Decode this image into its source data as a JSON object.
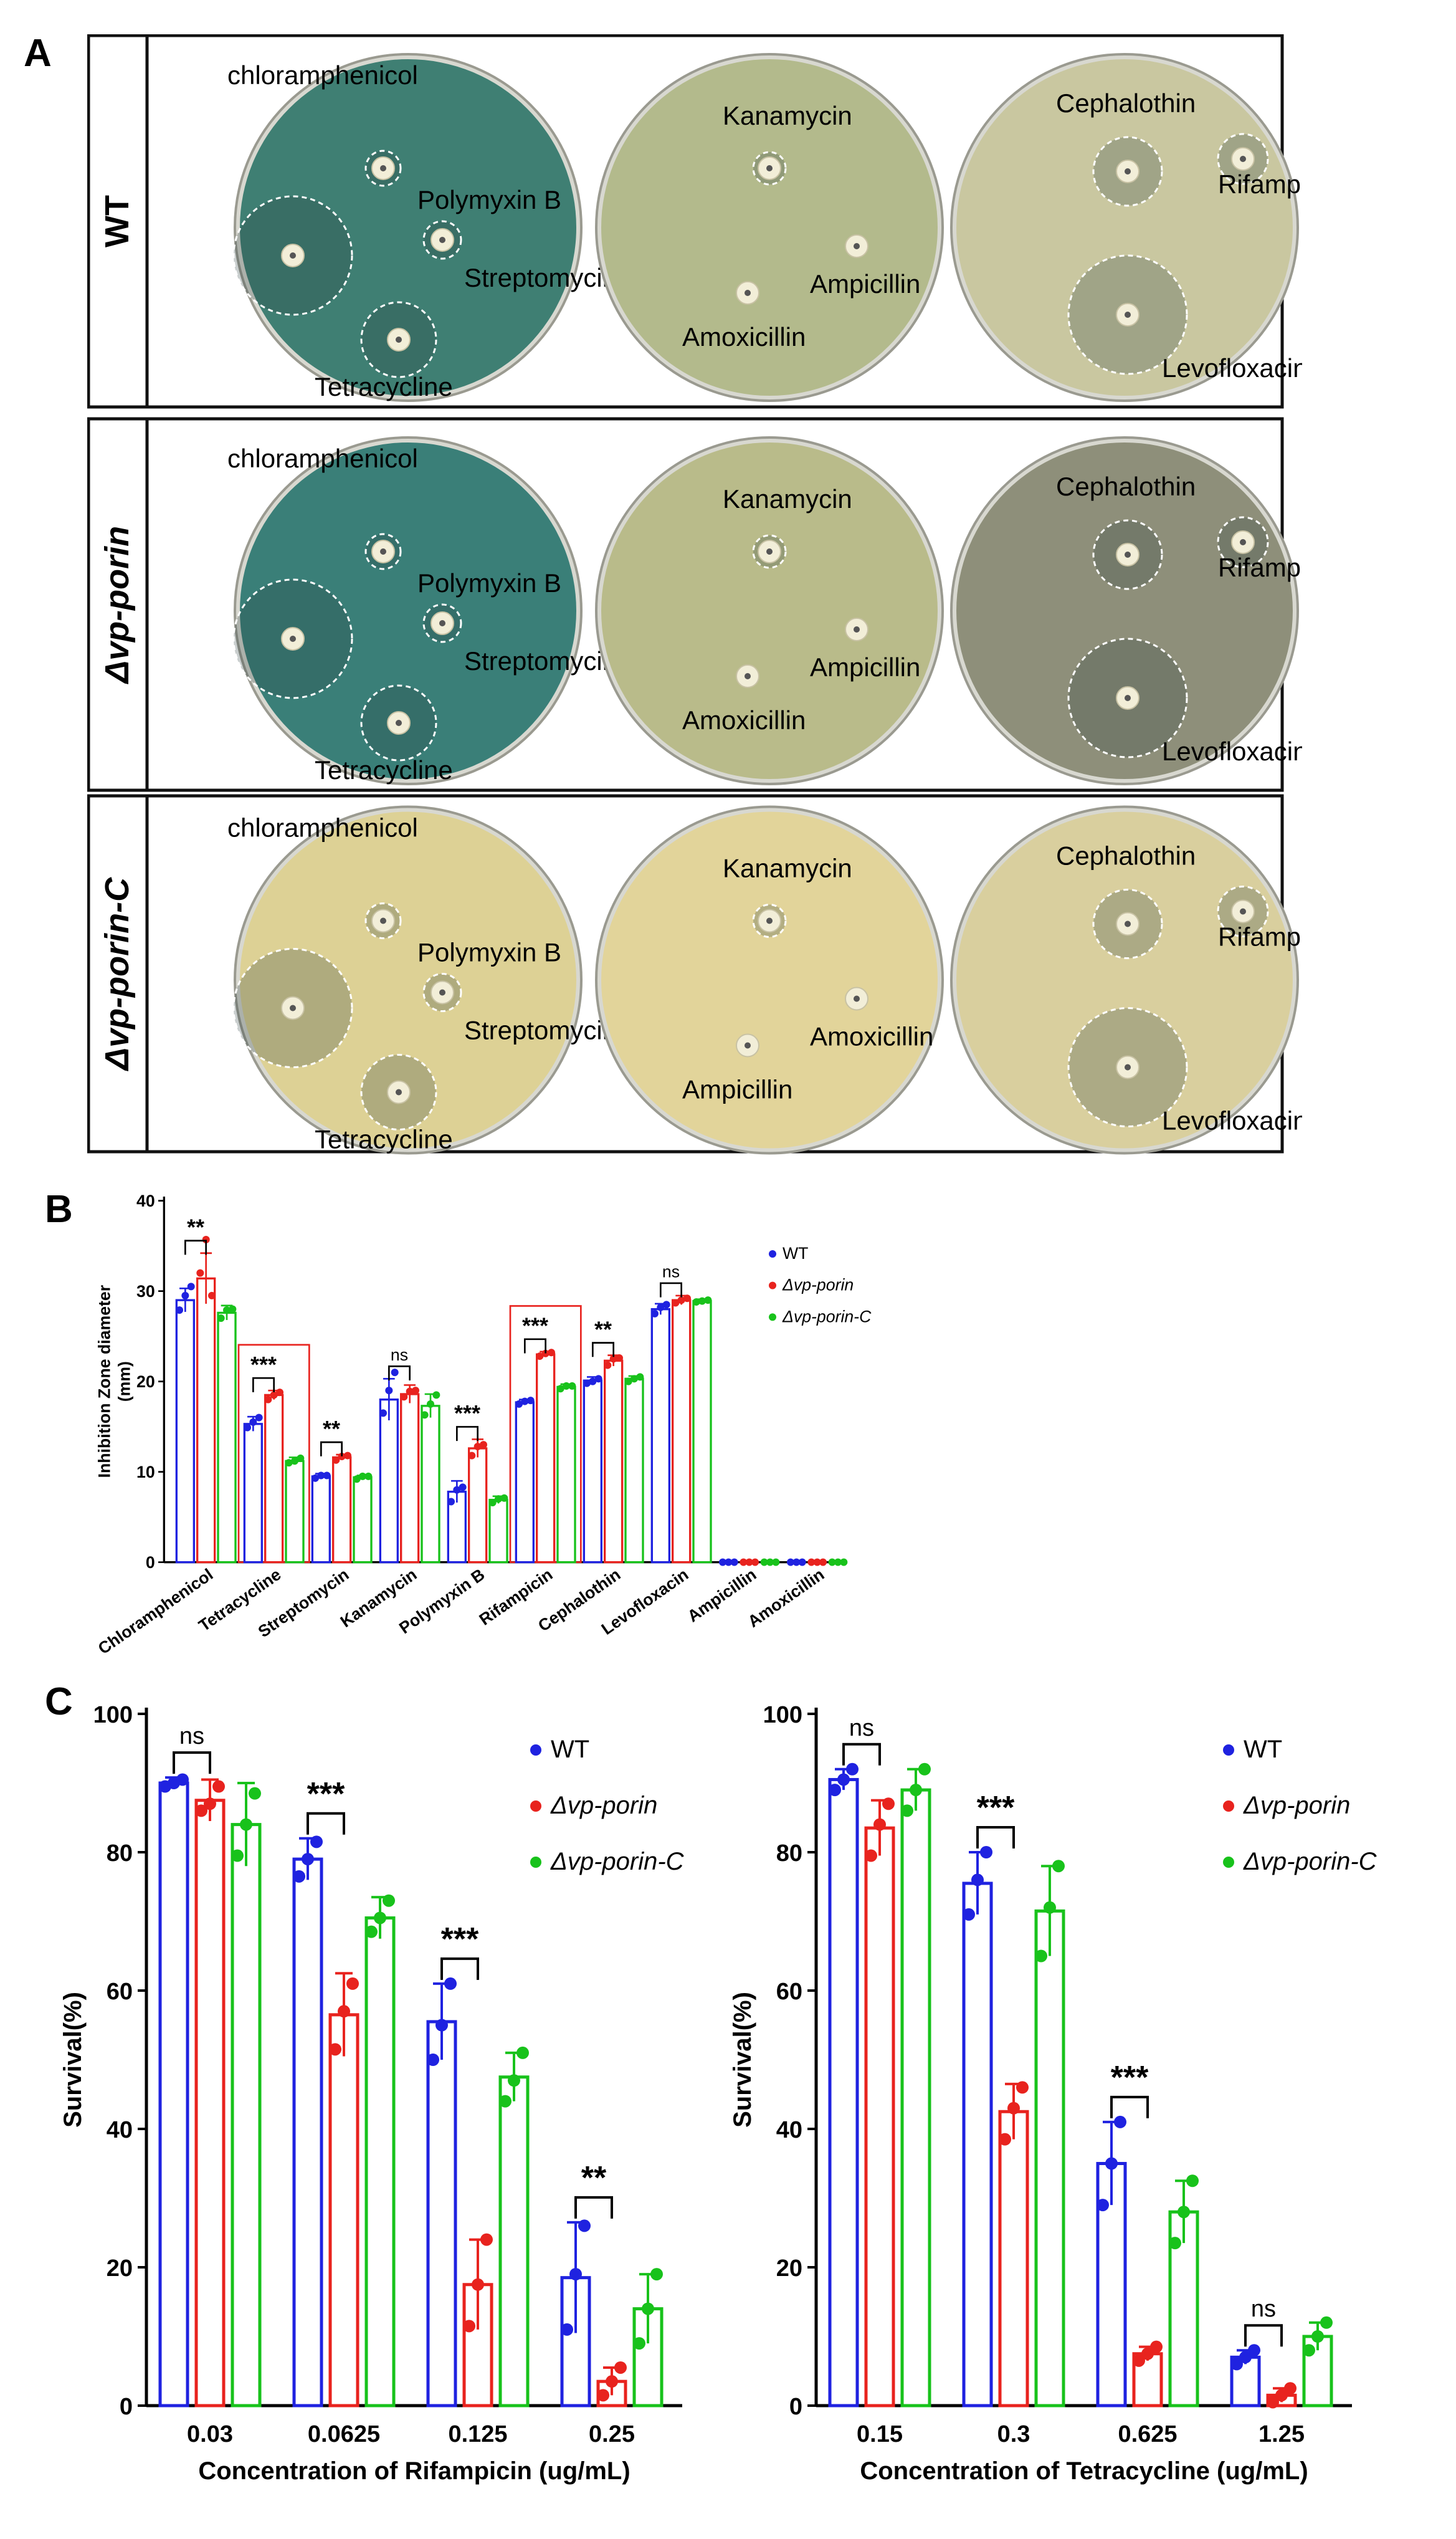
{
  "panel_labels": {
    "a": "A",
    "b": "B",
    "c": "C"
  },
  "panel_a": {
    "rows": [
      {
        "label": "WT",
        "label_style": "plain",
        "plate_colors": [
          "#3f7f73",
          "#b3ba8c",
          "#c9c7a0"
        ],
        "plates": [
          {
            "labels": [
              "chloramphenicol",
              "Polymyxin B",
              "Streptomycin",
              "Tetracycline"
            ]
          },
          {
            "labels": [
              "Kanamycin",
              "Ampicillin",
              "Amoxicillin"
            ]
          },
          {
            "labels": [
              "Cephalothin",
              "Rifampicin",
              "Levofloxacin"
            ]
          }
        ]
      },
      {
        "label": "Δvp-porin",
        "label_style": "italic",
        "plate_colors": [
          "#3a7f78",
          "#b9bb8a",
          "#8e8f7a"
        ],
        "plates": [
          {
            "labels": [
              "chloramphenicol",
              "Polymyxin B",
              "Streptomycin",
              "Tetracycline"
            ]
          },
          {
            "labels": [
              "Kanamycin",
              "Ampicillin",
              "Amoxicillin"
            ]
          },
          {
            "labels": [
              "Cephalothin",
              "Rifampicin",
              "Levofloxacin"
            ]
          }
        ]
      },
      {
        "label": "Δvp-porin-C",
        "label_style": "italic",
        "plate_colors": [
          "#ddd195",
          "#e2d49a",
          "#d9cf9e"
        ],
        "plates": [
          {
            "labels": [
              "chloramphenicol",
              "Polymyxin B",
              "Streptomycin",
              "Tetracycline"
            ]
          },
          {
            "labels": [
              "Kanamycin",
              "Amoxicillin",
              "Ampicillin"
            ]
          },
          {
            "labels": [
              "Cephalothin",
              "Rifampicin",
              "Levofloxacin"
            ]
          }
        ]
      }
    ]
  },
  "chart_data": [
    {
      "type": "bar",
      "id": "B",
      "ylabel": "Inhibition Zone diameter\n(mm)",
      "ylim": [
        0,
        40
      ],
      "yticks": [
        0,
        10,
        20,
        30,
        40
      ],
      "categories": [
        "Chloramphenicol",
        "Tetracycline",
        "Streptomycin",
        "Kanamycin",
        "Polymyxin B",
        "Rifampicin",
        "Cephalothin",
        "Levofloxacin",
        "Ampicillin",
        "Amoxicillin"
      ],
      "series": [
        {
          "name": "WT",
          "color": "#1f22e0",
          "italic": false,
          "values": [
            29.0,
            15.3,
            9.5,
            18.0,
            7.8,
            17.7,
            20.1,
            28.0,
            0,
            0
          ],
          "errors": [
            1.3,
            0.8,
            0.3,
            2.3,
            1.2,
            0.3,
            0.4,
            0.6,
            0,
            0
          ]
        },
        {
          "name": "Δvp-porin",
          "color": "#e8231e",
          "italic": true,
          "values": [
            31.4,
            18.5,
            11.6,
            18.6,
            12.6,
            23.0,
            22.3,
            29.0,
            0,
            0
          ],
          "errors": [
            2.8,
            0.5,
            0.3,
            1.0,
            1.0,
            0.3,
            0.6,
            0.5,
            0,
            0
          ]
        },
        {
          "name": "Δvp-porin-C",
          "color": "#18c21b",
          "italic": true,
          "values": [
            27.6,
            11.2,
            9.4,
            17.3,
            6.9,
            19.4,
            20.3,
            28.9,
            0,
            0
          ],
          "errors": [
            0.8,
            0.4,
            0.2,
            1.3,
            0.4,
            0.3,
            0.3,
            0.2,
            0,
            0
          ]
        }
      ],
      "points": [
        [
          [
            27.9,
            29.5,
            30.5
          ],
          [
            32.0,
            35.7,
            29.5
          ],
          [
            27.0,
            27.9,
            28.0
          ]
        ],
        [
          [
            14.9,
            15.5,
            16.0
          ],
          [
            18.0,
            18.5,
            18.8
          ],
          [
            11.0,
            11.2,
            11.5
          ]
        ],
        [
          [
            9.3,
            9.6,
            9.6
          ],
          [
            11.3,
            11.7,
            11.8
          ],
          [
            9.2,
            9.5,
            9.5
          ]
        ],
        [
          [
            16.5,
            19.0,
            21.0
          ],
          [
            18.3,
            18.9,
            19.0
          ],
          [
            16.3,
            17.5,
            18.5
          ]
        ],
        [
          [
            6.7,
            8.0,
            8.3
          ],
          [
            11.8,
            12.8,
            13.0
          ],
          [
            6.6,
            7.0,
            7.1
          ]
        ],
        [
          [
            17.5,
            17.8,
            17.9
          ],
          [
            22.8,
            23.1,
            23.2
          ],
          [
            19.2,
            19.5,
            19.5
          ]
        ],
        [
          [
            19.8,
            20.0,
            20.3
          ],
          [
            21.8,
            22.5,
            22.6
          ],
          [
            20.0,
            20.3,
            20.5
          ]
        ],
        [
          [
            27.5,
            28.2,
            28.5
          ],
          [
            28.7,
            29.0,
            29.2
          ],
          [
            28.8,
            28.9,
            29.0
          ]
        ],
        [
          [
            0,
            0,
            0
          ],
          [
            0,
            0,
            0
          ],
          [
            0,
            0,
            0
          ]
        ],
        [
          [
            0,
            0,
            0
          ],
          [
            0,
            0,
            0
          ],
          [
            0,
            0,
            0
          ]
        ]
      ],
      "significance": [
        {
          "category": 0,
          "text": "**"
        },
        {
          "category": 1,
          "text": "***"
        },
        {
          "category": 2,
          "text": "**"
        },
        {
          "category": 3,
          "text": "ns"
        },
        {
          "category": 4,
          "text": "***"
        },
        {
          "category": 5,
          "text": "***"
        },
        {
          "category": 6,
          "text": "**"
        },
        {
          "category": 7,
          "text": "ns"
        }
      ],
      "highlighted_categories": [
        1,
        5
      ],
      "legend_position": "right"
    },
    {
      "type": "bar",
      "id": "C-rifampicin",
      "xlabel": "Concentration of Rifampicin (ug/mL)",
      "ylabel": "Survival(%)",
      "ylim": [
        0,
        100
      ],
      "yticks": [
        0,
        20,
        40,
        60,
        80,
        100
      ],
      "categories": [
        "0.03",
        "0.0625",
        "0.125",
        "0.25"
      ],
      "series": [
        {
          "name": "WT",
          "color": "#1f22e0",
          "italic": false,
          "values": [
            90.0,
            79.0,
            55.5,
            18.5
          ],
          "errors": [
            0.8,
            3.0,
            5.5,
            8.0
          ]
        },
        {
          "name": "Δvp-porin",
          "color": "#e8231e",
          "italic": true,
          "values": [
            87.5,
            56.5,
            17.5,
            3.5
          ],
          "errors": [
            3.0,
            6.0,
            6.5,
            2.0
          ]
        },
        {
          "name": "Δvp-porin-C",
          "color": "#18c21b",
          "italic": true,
          "values": [
            84.0,
            70.5,
            47.5,
            14.0
          ],
          "errors": [
            6.0,
            3.0,
            3.5,
            5.0
          ]
        }
      ],
      "points": [
        [
          [
            89.5,
            90.0,
            90.5
          ],
          [
            86.0,
            87.0,
            89.5
          ],
          [
            79.5,
            84.0,
            88.5
          ]
        ],
        [
          [
            76.5,
            79.0,
            81.5
          ],
          [
            51.5,
            57.0,
            61.0
          ],
          [
            68.5,
            70.5,
            73.0
          ]
        ],
        [
          [
            50.0,
            55.0,
            61.0
          ],
          [
            11.5,
            17.5,
            24.0
          ],
          [
            44.0,
            47.0,
            51.0
          ]
        ],
        [
          [
            11.0,
            19.0,
            26.0
          ],
          [
            1.5,
            3.5,
            5.5
          ],
          [
            9.0,
            14.0,
            19.0
          ]
        ]
      ],
      "significance": [
        {
          "category": 0,
          "text": "ns"
        },
        {
          "category": 1,
          "text": "***"
        },
        {
          "category": 2,
          "text": "***"
        },
        {
          "category": 3,
          "text": "**"
        }
      ],
      "legend_position": "top-right"
    },
    {
      "type": "bar",
      "id": "C-tetracycline",
      "xlabel": "Concentration of Tetracycline (ug/mL)",
      "ylabel": "Survival(%)",
      "ylim": [
        0,
        100
      ],
      "yticks": [
        0,
        20,
        40,
        60,
        80,
        100
      ],
      "categories": [
        "0.15",
        "0.3",
        "0.625",
        "1.25"
      ],
      "series": [
        {
          "name": "WT",
          "color": "#1f22e0",
          "italic": false,
          "values": [
            90.5,
            75.5,
            35.0,
            7.0
          ],
          "errors": [
            1.5,
            4.5,
            6.0,
            1.0
          ]
        },
        {
          "name": "Δvp-porin",
          "color": "#e8231e",
          "italic": true,
          "values": [
            83.5,
            42.5,
            7.5,
            1.5
          ],
          "errors": [
            4.0,
            4.0,
            1.0,
            1.0
          ]
        },
        {
          "name": "Δvp-porin-C",
          "color": "#18c21b",
          "italic": true,
          "values": [
            89.0,
            71.5,
            28.0,
            10.0
          ],
          "errors": [
            3.0,
            6.5,
            4.5,
            2.0
          ]
        }
      ],
      "points": [
        [
          [
            89.0,
            90.5,
            92.0
          ],
          [
            79.5,
            84.0,
            87.0
          ],
          [
            86.0,
            89.0,
            92.0
          ]
        ],
        [
          [
            71.0,
            76.0,
            80.0
          ],
          [
            38.5,
            43.0,
            46.0
          ],
          [
            65.0,
            72.0,
            78.0
          ]
        ],
        [
          [
            29.0,
            35.0,
            41.0
          ],
          [
            6.5,
            7.5,
            8.5
          ],
          [
            23.5,
            28.0,
            32.5
          ]
        ],
        [
          [
            6.0,
            7.0,
            8.0
          ],
          [
            0.5,
            1.5,
            2.5
          ],
          [
            8.0,
            10.0,
            12.0
          ]
        ]
      ],
      "significance": [
        {
          "category": 0,
          "text": "ns"
        },
        {
          "category": 1,
          "text": "***"
        },
        {
          "category": 2,
          "text": "***"
        },
        {
          "category": 3,
          "text": "ns"
        }
      ],
      "legend_position": "top-right"
    }
  ]
}
